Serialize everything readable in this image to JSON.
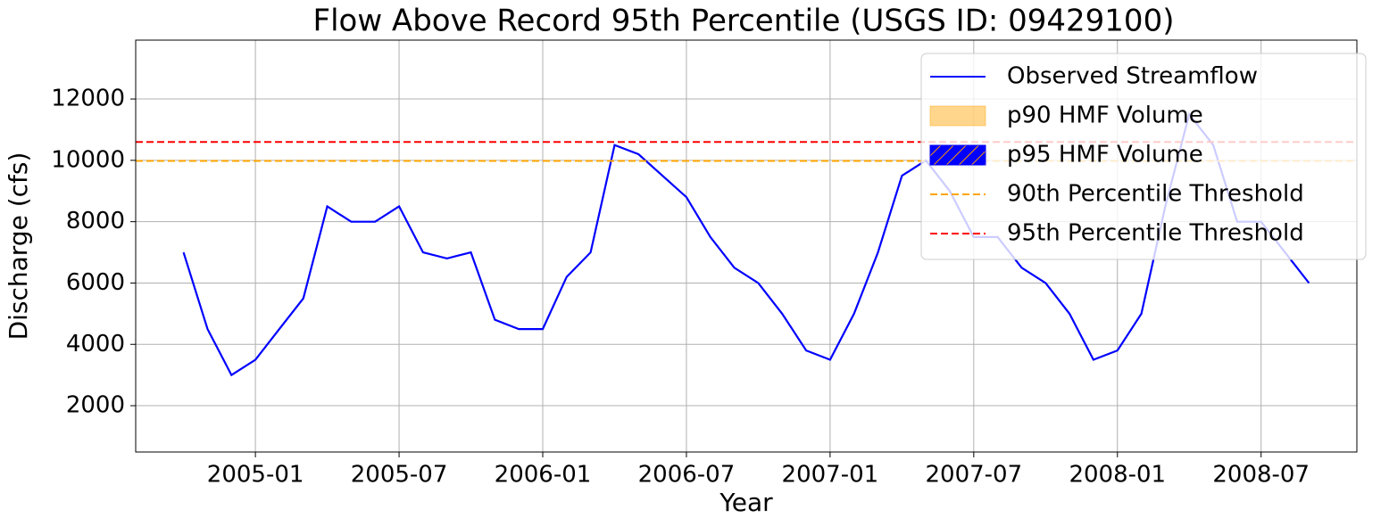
{
  "chart_data": {
    "type": "line",
    "title": "Flow Above Record 95th Percentile (USGS ID: 09429100)",
    "x_label": "Year",
    "y_label": "Discharge (cfs)",
    "x": [
      "2004-10",
      "2004-11",
      "2004-12",
      "2005-01",
      "2005-02",
      "2005-03",
      "2005-04",
      "2005-05",
      "2005-06",
      "2005-07",
      "2005-08",
      "2005-09",
      "2005-10",
      "2005-11",
      "2005-12",
      "2006-01",
      "2006-02",
      "2006-03",
      "2006-04",
      "2006-05",
      "2006-06",
      "2006-07",
      "2006-08",
      "2006-09",
      "2006-10",
      "2006-11",
      "2006-12",
      "2007-01",
      "2007-02",
      "2007-03",
      "2007-04",
      "2007-05",
      "2007-06",
      "2007-07",
      "2007-08",
      "2007-09",
      "2007-10",
      "2007-11",
      "2007-12",
      "2008-01",
      "2008-02",
      "2008-03",
      "2008-04",
      "2008-05",
      "2008-06",
      "2008-07",
      "2008-08",
      "2008-09"
    ],
    "series": [
      {
        "name": "Observed Streamflow",
        "color": "#0000ff",
        "values": [
          7000,
          4500,
          3000,
          3500,
          4500,
          5500,
          8500,
          8000,
          8000,
          8500,
          7000,
          6800,
          7000,
          4800,
          4500,
          4500,
          6200,
          7000,
          10500,
          10200,
          9500,
          8800,
          7500,
          6500,
          6000,
          5000,
          3800,
          3500,
          5000,
          7000,
          9500,
          10000,
          9000,
          7500,
          7500,
          6500,
          6000,
          5000,
          3500,
          3800,
          5000,
          8500,
          11500,
          10500,
          8000,
          8000,
          7000,
          6000
        ]
      }
    ],
    "fills": [
      {
        "name": "p90 HMF Volume",
        "color": "#ffa500"
      },
      {
        "name": "p95 HMF Volume",
        "color": "#0000ff"
      }
    ],
    "thresholds": [
      {
        "name": "90th Percentile Threshold",
        "color": "#ffa500",
        "value": 9980
      },
      {
        "name": "95th Percentile Threshold",
        "color": "#ff0000",
        "value": 10600
      }
    ],
    "xlim": [
      "2004-08",
      "2008-11"
    ],
    "xticks": [
      "2005-01",
      "2005-07",
      "2006-01",
      "2006-07",
      "2007-01",
      "2007-07",
      "2008-01",
      "2008-07"
    ],
    "ylim": [
      490,
      13920
    ],
    "yticks": [
      2000,
      4000,
      6000,
      8000,
      10000,
      12000
    ],
    "grid": true,
    "legend": "upper right"
  }
}
